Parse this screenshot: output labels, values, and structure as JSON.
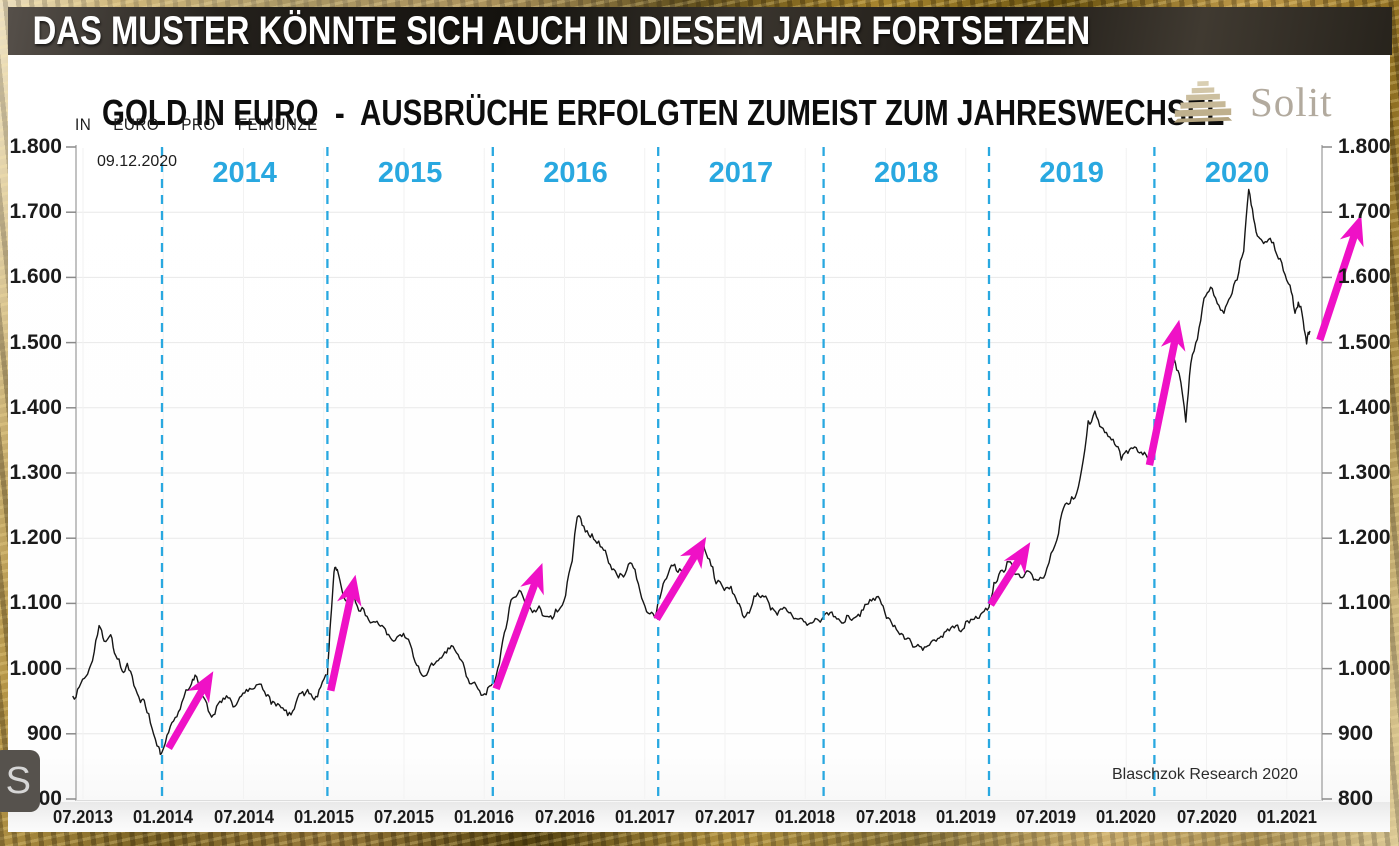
{
  "banner": {
    "text": "DAS MUSTER KÖNNTE SICH AUCH IN DIESEM JAHR FORTSETZEN"
  },
  "header": {
    "title": "GOLD IN EURO  -  AUSBRÜCHE ERFOLGTEN ZUMEIST ZUM JAHRESWECHSEL",
    "subtitle": "IN  EURO  PRO  FEINUNZE",
    "logo": {
      "text": "Solit",
      "icon": "step-pyramid-icon"
    }
  },
  "annotations": {
    "date_label": "09.12.2020",
    "source": "Blaschzok Research 2020",
    "overlay_letter": "S"
  },
  "colors": {
    "accent_cyan": "#29a8e0",
    "accent_magenta": "#ef11c6",
    "price_line": "#161616",
    "area_fill": "#f3f3f3",
    "grid": "#e8e8e8",
    "gold": "#a8862f"
  },
  "chart_data": {
    "type": "area",
    "unit": "EUR pro Feinunze",
    "ylim": [
      800,
      1800
    ],
    "xlim_labels": [
      "07.2013",
      "01.2021"
    ],
    "grid": true,
    "legend": "none",
    "y_tick_labels": [
      "1.800",
      "1.700",
      "1.600",
      "1.500",
      "1.400",
      "1.300",
      "1.200",
      "1.100",
      "1.000",
      "900",
      "800"
    ],
    "y_tick_values": [
      1800,
      1700,
      1600,
      1500,
      1400,
      1300,
      1200,
      1100,
      1000,
      900,
      800
    ],
    "x_tick_labels": [
      "07.2013",
      "01.2014",
      "07.2014",
      "01.2015",
      "07.2015",
      "01.2016",
      "07.2016",
      "01.2017",
      "07.2017",
      "01.2018",
      "07.2018",
      "01.2019",
      "07.2019",
      "01.2020",
      "07.2020",
      "01.2021"
    ],
    "year_labels": [
      "2014",
      "2015",
      "2016",
      "2017",
      "2018",
      "2019",
      "2020"
    ],
    "year_separators": [
      2014,
      2015,
      2016,
      2017,
      2018,
      2019,
      2020
    ],
    "breakout_arrows": [
      {
        "from": [
          2014.04,
          878
        ],
        "to": [
          2014.31,
          996
        ]
      },
      {
        "from": [
          2015.02,
          966
        ],
        "to": [
          2015.17,
          1144
        ]
      },
      {
        "from": [
          2016.02,
          969
        ],
        "to": [
          2016.3,
          1162
        ]
      },
      {
        "from": [
          2016.99,
          1076
        ],
        "to": [
          2017.29,
          1202
        ]
      },
      {
        "from": [
          2019.01,
          1098
        ],
        "to": [
          2019.25,
          1194
        ]
      },
      {
        "from": [
          2019.97,
          1312
        ],
        "to": [
          2020.15,
          1535
        ]
      },
      {
        "from": [
          2021.0,
          1504
        ],
        "to": [
          2021.25,
          1696
        ]
      }
    ],
    "series": [
      {
        "name": "Gold in EUR pro Feinunze",
        "points": [
          [
            2013.46,
            958
          ],
          [
            2013.5,
            972
          ],
          [
            2013.54,
            988
          ],
          [
            2013.58,
            1012
          ],
          [
            2013.62,
            1066
          ],
          [
            2013.65,
            1042
          ],
          [
            2013.69,
            1052
          ],
          [
            2013.72,
            1020
          ],
          [
            2013.76,
            996
          ],
          [
            2013.79,
            1008
          ],
          [
            2013.83,
            974
          ],
          [
            2013.87,
            948
          ],
          [
            2013.9,
            942
          ],
          [
            2013.94,
            908
          ],
          [
            2013.98,
            880
          ],
          [
            2014.0,
            872
          ],
          [
            2014.04,
            902
          ],
          [
            2014.08,
            925
          ],
          [
            2014.12,
            948
          ],
          [
            2014.17,
            972
          ],
          [
            2014.2,
            990
          ],
          [
            2014.24,
            958
          ],
          [
            2014.28,
            935
          ],
          [
            2014.32,
            930
          ],
          [
            2014.36,
            948
          ],
          [
            2014.4,
            955
          ],
          [
            2014.44,
            942
          ],
          [
            2014.48,
            958
          ],
          [
            2014.52,
            965
          ],
          [
            2014.56,
            970
          ],
          [
            2014.6,
            976
          ],
          [
            2014.64,
            960
          ],
          [
            2014.68,
            948
          ],
          [
            2014.72,
            940
          ],
          [
            2014.76,
            928
          ],
          [
            2014.8,
            938
          ],
          [
            2014.84,
            962
          ],
          [
            2014.88,
            968
          ],
          [
            2014.92,
            952
          ],
          [
            2014.96,
            972
          ],
          [
            2015.0,
            988
          ],
          [
            2015.02,
            1075
          ],
          [
            2015.04,
            1148
          ],
          [
            2015.06,
            1152
          ],
          [
            2015.09,
            1118
          ],
          [
            2015.13,
            1102
          ],
          [
            2015.16,
            1116
          ],
          [
            2015.2,
            1088
          ],
          [
            2015.24,
            1080
          ],
          [
            2015.28,
            1072
          ],
          [
            2015.32,
            1065
          ],
          [
            2015.36,
            1052
          ],
          [
            2015.4,
            1042
          ],
          [
            2015.44,
            1052
          ],
          [
            2015.48,
            1046
          ],
          [
            2015.52,
            1018
          ],
          [
            2015.56,
            995
          ],
          [
            2015.6,
            990
          ],
          [
            2015.64,
            1005
          ],
          [
            2015.68,
            1016
          ],
          [
            2015.72,
            1024
          ],
          [
            2015.76,
            1034
          ],
          [
            2015.8,
            1015
          ],
          [
            2015.84,
            988
          ],
          [
            2015.88,
            978
          ],
          [
            2015.92,
            966
          ],
          [
            2015.96,
            960
          ],
          [
            2016.0,
            978
          ],
          [
            2016.04,
            1008
          ],
          [
            2016.08,
            1062
          ],
          [
            2016.12,
            1108
          ],
          [
            2016.16,
            1120
          ],
          [
            2016.2,
            1096
          ],
          [
            2016.24,
            1086
          ],
          [
            2016.28,
            1096
          ],
          [
            2016.32,
            1080
          ],
          [
            2016.36,
            1076
          ],
          [
            2016.4,
            1090
          ],
          [
            2016.44,
            1112
          ],
          [
            2016.48,
            1165
          ],
          [
            2016.51,
            1232
          ],
          [
            2016.54,
            1220
          ],
          [
            2016.58,
            1205
          ],
          [
            2016.62,
            1196
          ],
          [
            2016.66,
            1186
          ],
          [
            2016.7,
            1162
          ],
          [
            2016.74,
            1150
          ],
          [
            2016.78,
            1144
          ],
          [
            2016.82,
            1160
          ],
          [
            2016.86,
            1152
          ],
          [
            2016.9,
            1108
          ],
          [
            2016.94,
            1085
          ],
          [
            2016.98,
            1078
          ],
          [
            2017.02,
            1118
          ],
          [
            2017.06,
            1145
          ],
          [
            2017.1,
            1160
          ],
          [
            2017.14,
            1150
          ],
          [
            2017.18,
            1156
          ],
          [
            2017.22,
            1170
          ],
          [
            2017.27,
            1196
          ],
          [
            2017.31,
            1168
          ],
          [
            2017.35,
            1130
          ],
          [
            2017.4,
            1120
          ],
          [
            2017.44,
            1126
          ],
          [
            2017.48,
            1100
          ],
          [
            2017.52,
            1078
          ],
          [
            2017.56,
            1092
          ],
          [
            2017.6,
            1116
          ],
          [
            2017.64,
            1110
          ],
          [
            2017.68,
            1090
          ],
          [
            2017.72,
            1082
          ],
          [
            2017.76,
            1094
          ],
          [
            2017.8,
            1086
          ],
          [
            2017.84,
            1076
          ],
          [
            2017.88,
            1072
          ],
          [
            2017.92,
            1070
          ],
          [
            2017.96,
            1076
          ],
          [
            2018.0,
            1080
          ],
          [
            2018.04,
            1086
          ],
          [
            2018.08,
            1076
          ],
          [
            2018.12,
            1070
          ],
          [
            2018.16,
            1076
          ],
          [
            2018.2,
            1080
          ],
          [
            2018.24,
            1090
          ],
          [
            2018.28,
            1106
          ],
          [
            2018.32,
            1110
          ],
          [
            2018.36,
            1096
          ],
          [
            2018.4,
            1076
          ],
          [
            2018.44,
            1060
          ],
          [
            2018.48,
            1052
          ],
          [
            2018.52,
            1046
          ],
          [
            2018.56,
            1034
          ],
          [
            2018.6,
            1028
          ],
          [
            2018.64,
            1036
          ],
          [
            2018.68,
            1042
          ],
          [
            2018.72,
            1048
          ],
          [
            2018.76,
            1058
          ],
          [
            2018.8,
            1066
          ],
          [
            2018.84,
            1060
          ],
          [
            2018.88,
            1070
          ],
          [
            2018.92,
            1080
          ],
          [
            2018.96,
            1086
          ],
          [
            2019.0,
            1094
          ],
          [
            2019.03,
            1132
          ],
          [
            2019.07,
            1150
          ],
          [
            2019.11,
            1164
          ],
          [
            2019.15,
            1146
          ],
          [
            2019.19,
            1140
          ],
          [
            2019.23,
            1150
          ],
          [
            2019.27,
            1136
          ],
          [
            2019.31,
            1140
          ],
          [
            2019.35,
            1154
          ],
          [
            2019.4,
            1190
          ],
          [
            2019.44,
            1238
          ],
          [
            2019.48,
            1252
          ],
          [
            2019.52,
            1262
          ],
          [
            2019.56,
            1305
          ],
          [
            2019.6,
            1380
          ],
          [
            2019.64,
            1395
          ],
          [
            2019.68,
            1370
          ],
          [
            2019.72,
            1356
          ],
          [
            2019.76,
            1344
          ],
          [
            2019.8,
            1320
          ],
          [
            2019.84,
            1330
          ],
          [
            2019.88,
            1340
          ],
          [
            2019.92,
            1332
          ],
          [
            2019.96,
            1322
          ],
          [
            2020.0,
            1348
          ],
          [
            2020.04,
            1408
          ],
          [
            2020.08,
            1445
          ],
          [
            2020.12,
            1475
          ],
          [
            2020.15,
            1452
          ],
          [
            2020.19,
            1378
          ],
          [
            2020.22,
            1468
          ],
          [
            2020.26,
            1505
          ],
          [
            2020.3,
            1568
          ],
          [
            2020.34,
            1585
          ],
          [
            2020.38,
            1560
          ],
          [
            2020.42,
            1545
          ],
          [
            2020.46,
            1570
          ],
          [
            2020.5,
            1596
          ],
          [
            2020.54,
            1640
          ],
          [
            2020.57,
            1735
          ],
          [
            2020.6,
            1690
          ],
          [
            2020.63,
            1662
          ],
          [
            2020.66,
            1652
          ],
          [
            2020.7,
            1660
          ],
          [
            2020.74,
            1635
          ],
          [
            2020.78,
            1610
          ],
          [
            2020.82,
            1588
          ],
          [
            2020.85,
            1545
          ],
          [
            2020.87,
            1562
          ],
          [
            2020.9,
            1532
          ],
          [
            2020.92,
            1498
          ],
          [
            2020.94,
            1518
          ]
        ]
      }
    ]
  }
}
